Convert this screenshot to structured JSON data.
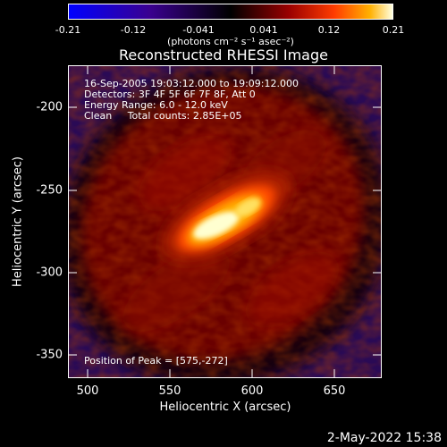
{
  "colorbar": {
    "ticks": [
      "-0.21",
      "-0.12",
      "-0.041",
      "0.041",
      "0.12",
      "0.21"
    ],
    "units": "(photons cm⁻² s⁻¹ asec⁻²)"
  },
  "title": "Reconstructed RHESSI Image",
  "info": {
    "line1": "16-Sep-2005 19:03:12.000 to 19:09:12.000",
    "line2": "Detectors: 3F 4F 5F 6F 7F 8F, Att 0",
    "line3": "Energy Range: 6.0 - 12.0 keV",
    "line4": "Clean     Total counts: 2.85E+05",
    "peak": "Position of Peak = [575,-272]"
  },
  "footer": {
    "date": "2-May-2022 15:38"
  },
  "chart_data": {
    "type": "heatmap",
    "title": "Reconstructed RHESSI Image",
    "xlabel": "Heliocentric X (arcsec)",
    "ylabel": "Heliocentric Y (arcsec)",
    "xlim": [
      490,
      680
    ],
    "ylim": [
      -365,
      -176
    ],
    "xticks": [
      "500",
      "550",
      "600",
      "650"
    ],
    "yticks": [
      "-200",
      "-250",
      "-300",
      "-350"
    ],
    "colorbar_range": [
      -0.21,
      0.21
    ],
    "colormap": [
      "#0000ff",
      "#4400aa",
      "#000000",
      "#800000",
      "#ff3300",
      "#ffaa00",
      "#ffffdd"
    ],
    "peak": [
      575,
      -272
    ]
  }
}
